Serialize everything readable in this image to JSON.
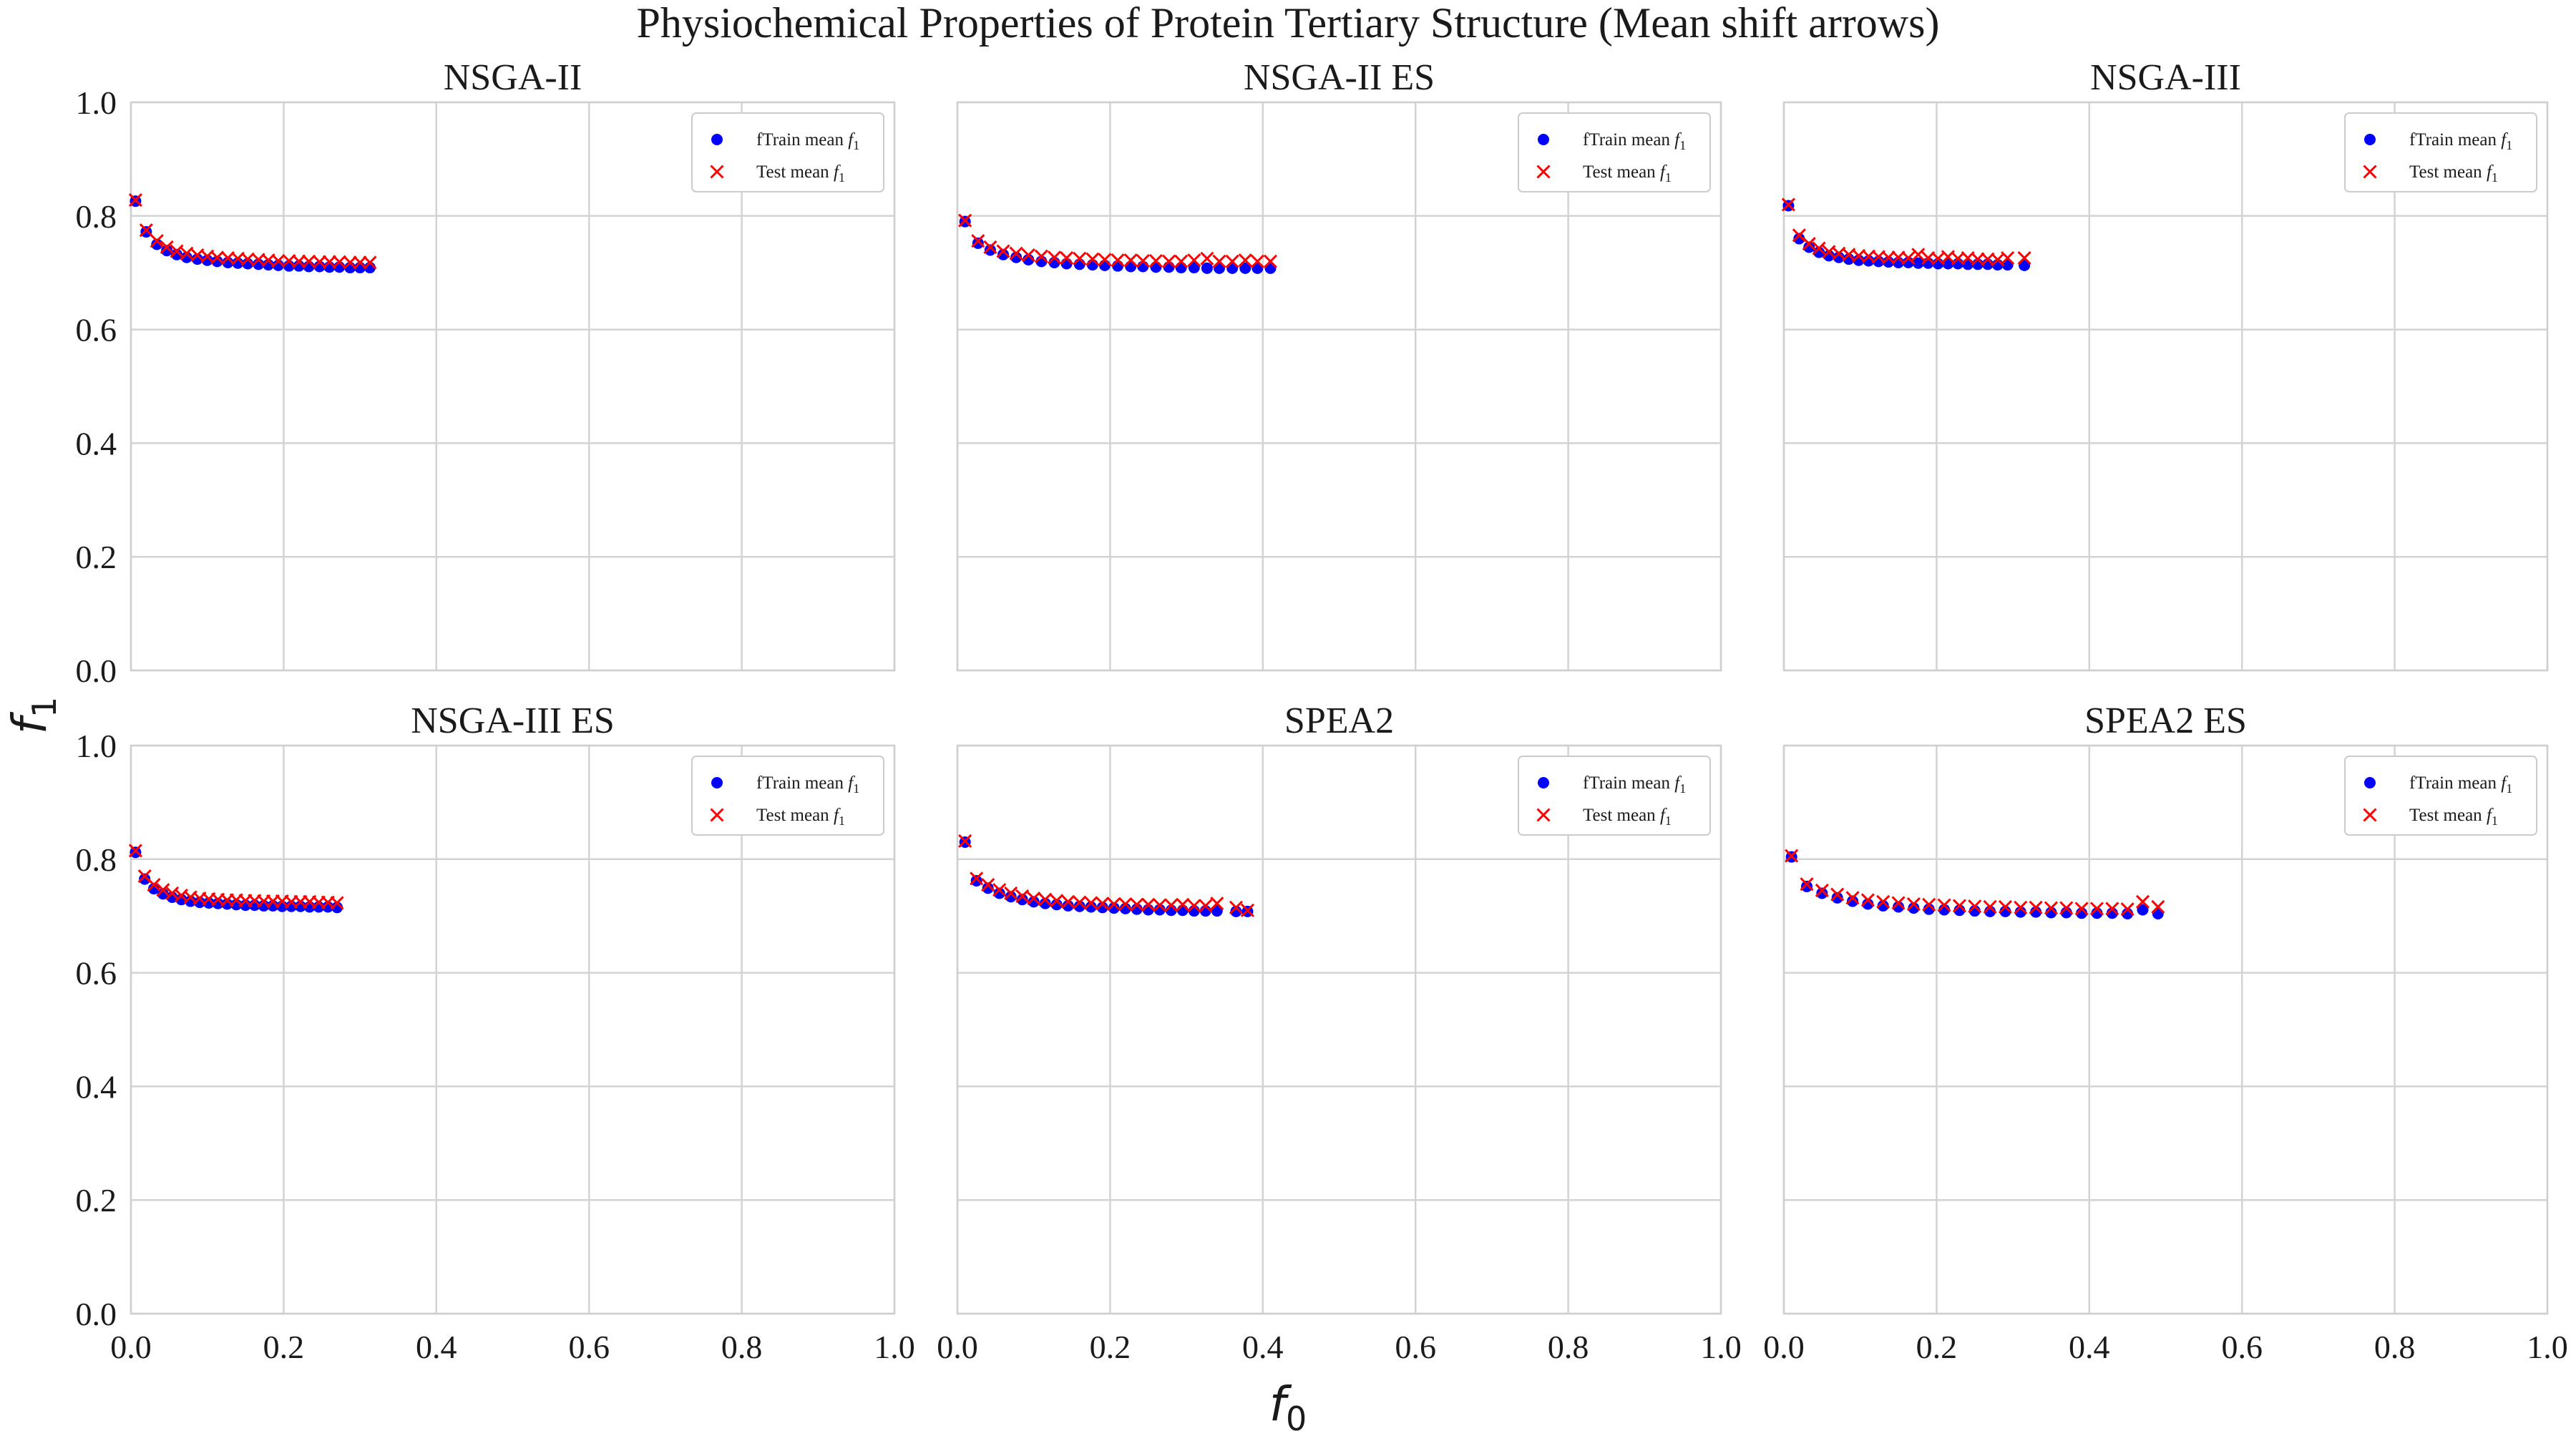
{
  "suptitle": "Physiochemical Properties of Protein Tertiary Structure (Mean shift arrows)",
  "shared_axes": {
    "xlabel": "f",
    "xlabel_sub": "0",
    "ylabel": "f",
    "ylabel_sub": "1"
  },
  "legend": {
    "train_label": "fTrain mean ",
    "test_label": "Test mean ",
    "var_main": "f",
    "var_sub": "1"
  },
  "colors": {
    "train": "#0000ff",
    "test": "#ff0000"
  },
  "chart_data": [
    {
      "type": "scatter",
      "title": "NSGA-II",
      "xlim": [
        0,
        1
      ],
      "ylim": [
        0,
        1
      ],
      "xticks": [
        "0.0",
        "0.2",
        "0.4",
        "0.6",
        "0.8",
        "1.0"
      ],
      "yticks": [
        "0.0",
        "0.2",
        "0.4",
        "0.6",
        "0.8",
        "1.0"
      ],
      "grid": true,
      "legend_position": "top-right",
      "series": [
        {
          "name": "fTrain mean f1",
          "marker": "circle",
          "x": [
            0.006,
            0.02,
            0.034,
            0.047,
            0.06,
            0.073,
            0.087,
            0.1,
            0.113,
            0.127,
            0.14,
            0.153,
            0.167,
            0.18,
            0.193,
            0.207,
            0.22,
            0.233,
            0.247,
            0.26,
            0.273,
            0.287,
            0.3,
            0.313
          ],
          "y": [
            0.826,
            0.772,
            0.75,
            0.739,
            0.732,
            0.727,
            0.724,
            0.722,
            0.72,
            0.718,
            0.717,
            0.716,
            0.715,
            0.714,
            0.713,
            0.712,
            0.712,
            0.711,
            0.711,
            0.71,
            0.71,
            0.709,
            0.709,
            0.709
          ]
        },
        {
          "name": "Test mean f1",
          "marker": "x",
          "x": [
            0.006,
            0.02,
            0.034,
            0.047,
            0.06,
            0.073,
            0.087,
            0.1,
            0.113,
            0.127,
            0.14,
            0.153,
            0.167,
            0.18,
            0.193,
            0.207,
            0.22,
            0.233,
            0.247,
            0.26,
            0.273,
            0.287,
            0.3,
            0.313
          ],
          "y": [
            0.828,
            0.775,
            0.756,
            0.745,
            0.738,
            0.734,
            0.731,
            0.729,
            0.727,
            0.726,
            0.725,
            0.724,
            0.723,
            0.722,
            0.721,
            0.721,
            0.72,
            0.72,
            0.719,
            0.719,
            0.719,
            0.718,
            0.718,
            0.718
          ]
        }
      ]
    },
    {
      "type": "scatter",
      "title": "NSGA-II ES",
      "xlim": [
        0,
        1
      ],
      "ylim": [
        0,
        1
      ],
      "xticks": [
        "0.0",
        "0.2",
        "0.4",
        "0.6",
        "0.8",
        "1.0"
      ],
      "yticks": [
        "0.0",
        "0.2",
        "0.4",
        "0.6",
        "0.8",
        "1.0"
      ],
      "grid": true,
      "legend_position": "top-right",
      "series": [
        {
          "name": "fTrain mean f1",
          "marker": "circle",
          "x": [
            0.01,
            0.027,
            0.043,
            0.06,
            0.077,
            0.093,
            0.11,
            0.127,
            0.143,
            0.16,
            0.177,
            0.193,
            0.21,
            0.227,
            0.243,
            0.26,
            0.277,
            0.293,
            0.31,
            0.327,
            0.343,
            0.36,
            0.377,
            0.393,
            0.41
          ],
          "y": [
            0.79,
            0.752,
            0.74,
            0.732,
            0.727,
            0.723,
            0.72,
            0.718,
            0.716,
            0.715,
            0.714,
            0.713,
            0.712,
            0.711,
            0.711,
            0.71,
            0.71,
            0.709,
            0.709,
            0.708,
            0.708,
            0.708,
            0.708,
            0.708,
            0.708
          ]
        },
        {
          "name": "Test mean f1",
          "marker": "x",
          "x": [
            0.01,
            0.027,
            0.043,
            0.06,
            0.077,
            0.093,
            0.11,
            0.127,
            0.143,
            0.16,
            0.177,
            0.193,
            0.21,
            0.227,
            0.243,
            0.26,
            0.277,
            0.293,
            0.31,
            0.327,
            0.343,
            0.36,
            0.377,
            0.393,
            0.41
          ],
          "y": [
            0.792,
            0.756,
            0.745,
            0.738,
            0.734,
            0.731,
            0.729,
            0.727,
            0.726,
            0.725,
            0.724,
            0.723,
            0.722,
            0.722,
            0.721,
            0.721,
            0.72,
            0.72,
            0.722,
            0.725,
            0.72,
            0.72,
            0.722,
            0.72,
            0.72
          ]
        }
      ]
    },
    {
      "type": "scatter",
      "title": "NSGA-III",
      "xlim": [
        0,
        1
      ],
      "ylim": [
        0,
        1
      ],
      "xticks": [
        "0.0",
        "0.2",
        "0.4",
        "0.6",
        "0.8",
        "1.0"
      ],
      "yticks": [
        "0.0",
        "0.2",
        "0.4",
        "0.6",
        "0.8",
        "1.0"
      ],
      "grid": true,
      "legend_position": "top-right",
      "series": [
        {
          "name": "fTrain mean f1",
          "marker": "circle",
          "x": [
            0.006,
            0.02,
            0.033,
            0.046,
            0.059,
            0.072,
            0.085,
            0.098,
            0.111,
            0.124,
            0.137,
            0.15,
            0.163,
            0.176,
            0.189,
            0.202,
            0.215,
            0.228,
            0.241,
            0.254,
            0.267,
            0.28,
            0.293,
            0.315
          ],
          "y": [
            0.818,
            0.76,
            0.745,
            0.736,
            0.73,
            0.727,
            0.724,
            0.722,
            0.721,
            0.72,
            0.719,
            0.718,
            0.718,
            0.717,
            0.717,
            0.716,
            0.716,
            0.716,
            0.715,
            0.715,
            0.715,
            0.714,
            0.714,
            0.713
          ]
        },
        {
          "name": "Test mean f1",
          "marker": "x",
          "x": [
            0.006,
            0.02,
            0.033,
            0.046,
            0.059,
            0.072,
            0.085,
            0.098,
            0.111,
            0.124,
            0.137,
            0.15,
            0.163,
            0.176,
            0.189,
            0.202,
            0.215,
            0.228,
            0.241,
            0.254,
            0.267,
            0.28,
            0.293,
            0.315
          ],
          "y": [
            0.82,
            0.766,
            0.751,
            0.743,
            0.737,
            0.734,
            0.732,
            0.73,
            0.729,
            0.728,
            0.727,
            0.727,
            0.726,
            0.732,
            0.726,
            0.725,
            0.728,
            0.725,
            0.726,
            0.724,
            0.724,
            0.723,
            0.726,
            0.726
          ]
        }
      ]
    },
    {
      "type": "scatter",
      "title": "NSGA-III ES",
      "xlim": [
        0,
        1
      ],
      "ylim": [
        0,
        1
      ],
      "xticks": [
        "0.0",
        "0.2",
        "0.4",
        "0.6",
        "0.8",
        "1.0"
      ],
      "yticks": [
        "0.0",
        "0.2",
        "0.4",
        "0.6",
        "0.8",
        "1.0"
      ],
      "grid": true,
      "legend_position": "top-right",
      "series": [
        {
          "name": "fTrain mean f1",
          "marker": "circle",
          "x": [
            0.006,
            0.018,
            0.03,
            0.042,
            0.054,
            0.066,
            0.078,
            0.09,
            0.102,
            0.114,
            0.126,
            0.138,
            0.15,
            0.162,
            0.174,
            0.186,
            0.198,
            0.21,
            0.222,
            0.234,
            0.246,
            0.258,
            0.27
          ],
          "y": [
            0.812,
            0.765,
            0.748,
            0.739,
            0.733,
            0.729,
            0.726,
            0.724,
            0.723,
            0.722,
            0.721,
            0.72,
            0.719,
            0.719,
            0.718,
            0.718,
            0.717,
            0.717,
            0.717,
            0.716,
            0.716,
            0.716,
            0.715
          ]
        },
        {
          "name": "Test mean f1",
          "marker": "x",
          "x": [
            0.006,
            0.018,
            0.03,
            0.042,
            0.054,
            0.066,
            0.078,
            0.09,
            0.102,
            0.114,
            0.126,
            0.138,
            0.15,
            0.162,
            0.174,
            0.186,
            0.198,
            0.21,
            0.222,
            0.234,
            0.246,
            0.258,
            0.27
          ],
          "y": [
            0.815,
            0.77,
            0.755,
            0.746,
            0.74,
            0.736,
            0.733,
            0.731,
            0.73,
            0.729,
            0.728,
            0.728,
            0.727,
            0.727,
            0.726,
            0.726,
            0.726,
            0.725,
            0.725,
            0.725,
            0.724,
            0.724,
            0.723
          ]
        }
      ]
    },
    {
      "type": "scatter",
      "title": "SPEA2",
      "xlim": [
        0,
        1
      ],
      "ylim": [
        0,
        1
      ],
      "xticks": [
        "0.0",
        "0.2",
        "0.4",
        "0.6",
        "0.8",
        "1.0"
      ],
      "yticks": [
        "0.0",
        "0.2",
        "0.4",
        "0.6",
        "0.8",
        "1.0"
      ],
      "grid": true,
      "legend_position": "top-right",
      "series": [
        {
          "name": "fTrain mean f1",
          "marker": "circle",
          "x": [
            0.01,
            0.025,
            0.04,
            0.055,
            0.07,
            0.085,
            0.1,
            0.115,
            0.13,
            0.145,
            0.16,
            0.175,
            0.19,
            0.205,
            0.22,
            0.235,
            0.25,
            0.265,
            0.28,
            0.295,
            0.31,
            0.325,
            0.34,
            0.365,
            0.38
          ],
          "y": [
            0.83,
            0.762,
            0.749,
            0.74,
            0.734,
            0.729,
            0.725,
            0.722,
            0.72,
            0.718,
            0.717,
            0.716,
            0.715,
            0.714,
            0.713,
            0.712,
            0.711,
            0.711,
            0.71,
            0.71,
            0.709,
            0.709,
            0.709,
            0.708,
            0.708
          ]
        },
        {
          "name": "Test mean f1",
          "marker": "x",
          "x": [
            0.01,
            0.025,
            0.04,
            0.055,
            0.07,
            0.085,
            0.1,
            0.115,
            0.13,
            0.145,
            0.16,
            0.175,
            0.19,
            0.205,
            0.22,
            0.235,
            0.25,
            0.265,
            0.28,
            0.295,
            0.31,
            0.325,
            0.34,
            0.365,
            0.38
          ],
          "y": [
            0.832,
            0.766,
            0.755,
            0.746,
            0.74,
            0.735,
            0.731,
            0.729,
            0.727,
            0.725,
            0.724,
            0.723,
            0.722,
            0.721,
            0.721,
            0.72,
            0.72,
            0.719,
            0.719,
            0.72,
            0.718,
            0.718,
            0.722,
            0.715,
            0.71
          ]
        }
      ]
    },
    {
      "type": "scatter",
      "title": "SPEA2 ES",
      "xlim": [
        0,
        1
      ],
      "ylim": [
        0,
        1
      ],
      "xticks": [
        "0.0",
        "0.2",
        "0.4",
        "0.6",
        "0.8",
        "1.0"
      ],
      "yticks": [
        "0.0",
        "0.2",
        "0.4",
        "0.6",
        "0.8",
        "1.0"
      ],
      "grid": true,
      "legend_position": "top-right",
      "series": [
        {
          "name": "fTrain mean f1",
          "marker": "circle",
          "x": [
            0.01,
            0.03,
            0.05,
            0.07,
            0.09,
            0.11,
            0.13,
            0.15,
            0.17,
            0.19,
            0.21,
            0.23,
            0.25,
            0.27,
            0.29,
            0.31,
            0.33,
            0.35,
            0.37,
            0.39,
            0.41,
            0.43,
            0.45,
            0.47,
            0.49
          ],
          "y": [
            0.804,
            0.752,
            0.74,
            0.732,
            0.726,
            0.721,
            0.718,
            0.716,
            0.714,
            0.712,
            0.711,
            0.71,
            0.709,
            0.708,
            0.708,
            0.707,
            0.707,
            0.706,
            0.706,
            0.705,
            0.705,
            0.705,
            0.704,
            0.711,
            0.704
          ]
        },
        {
          "name": "Test mean f1",
          "marker": "x",
          "x": [
            0.01,
            0.03,
            0.05,
            0.07,
            0.09,
            0.11,
            0.13,
            0.15,
            0.17,
            0.19,
            0.21,
            0.23,
            0.25,
            0.27,
            0.29,
            0.31,
            0.33,
            0.35,
            0.37,
            0.39,
            0.41,
            0.43,
            0.45,
            0.47,
            0.49
          ],
          "y": [
            0.806,
            0.756,
            0.745,
            0.738,
            0.732,
            0.728,
            0.725,
            0.723,
            0.721,
            0.72,
            0.719,
            0.718,
            0.717,
            0.716,
            0.716,
            0.715,
            0.715,
            0.714,
            0.714,
            0.713,
            0.713,
            0.713,
            0.712,
            0.725,
            0.716
          ]
        }
      ]
    }
  ]
}
